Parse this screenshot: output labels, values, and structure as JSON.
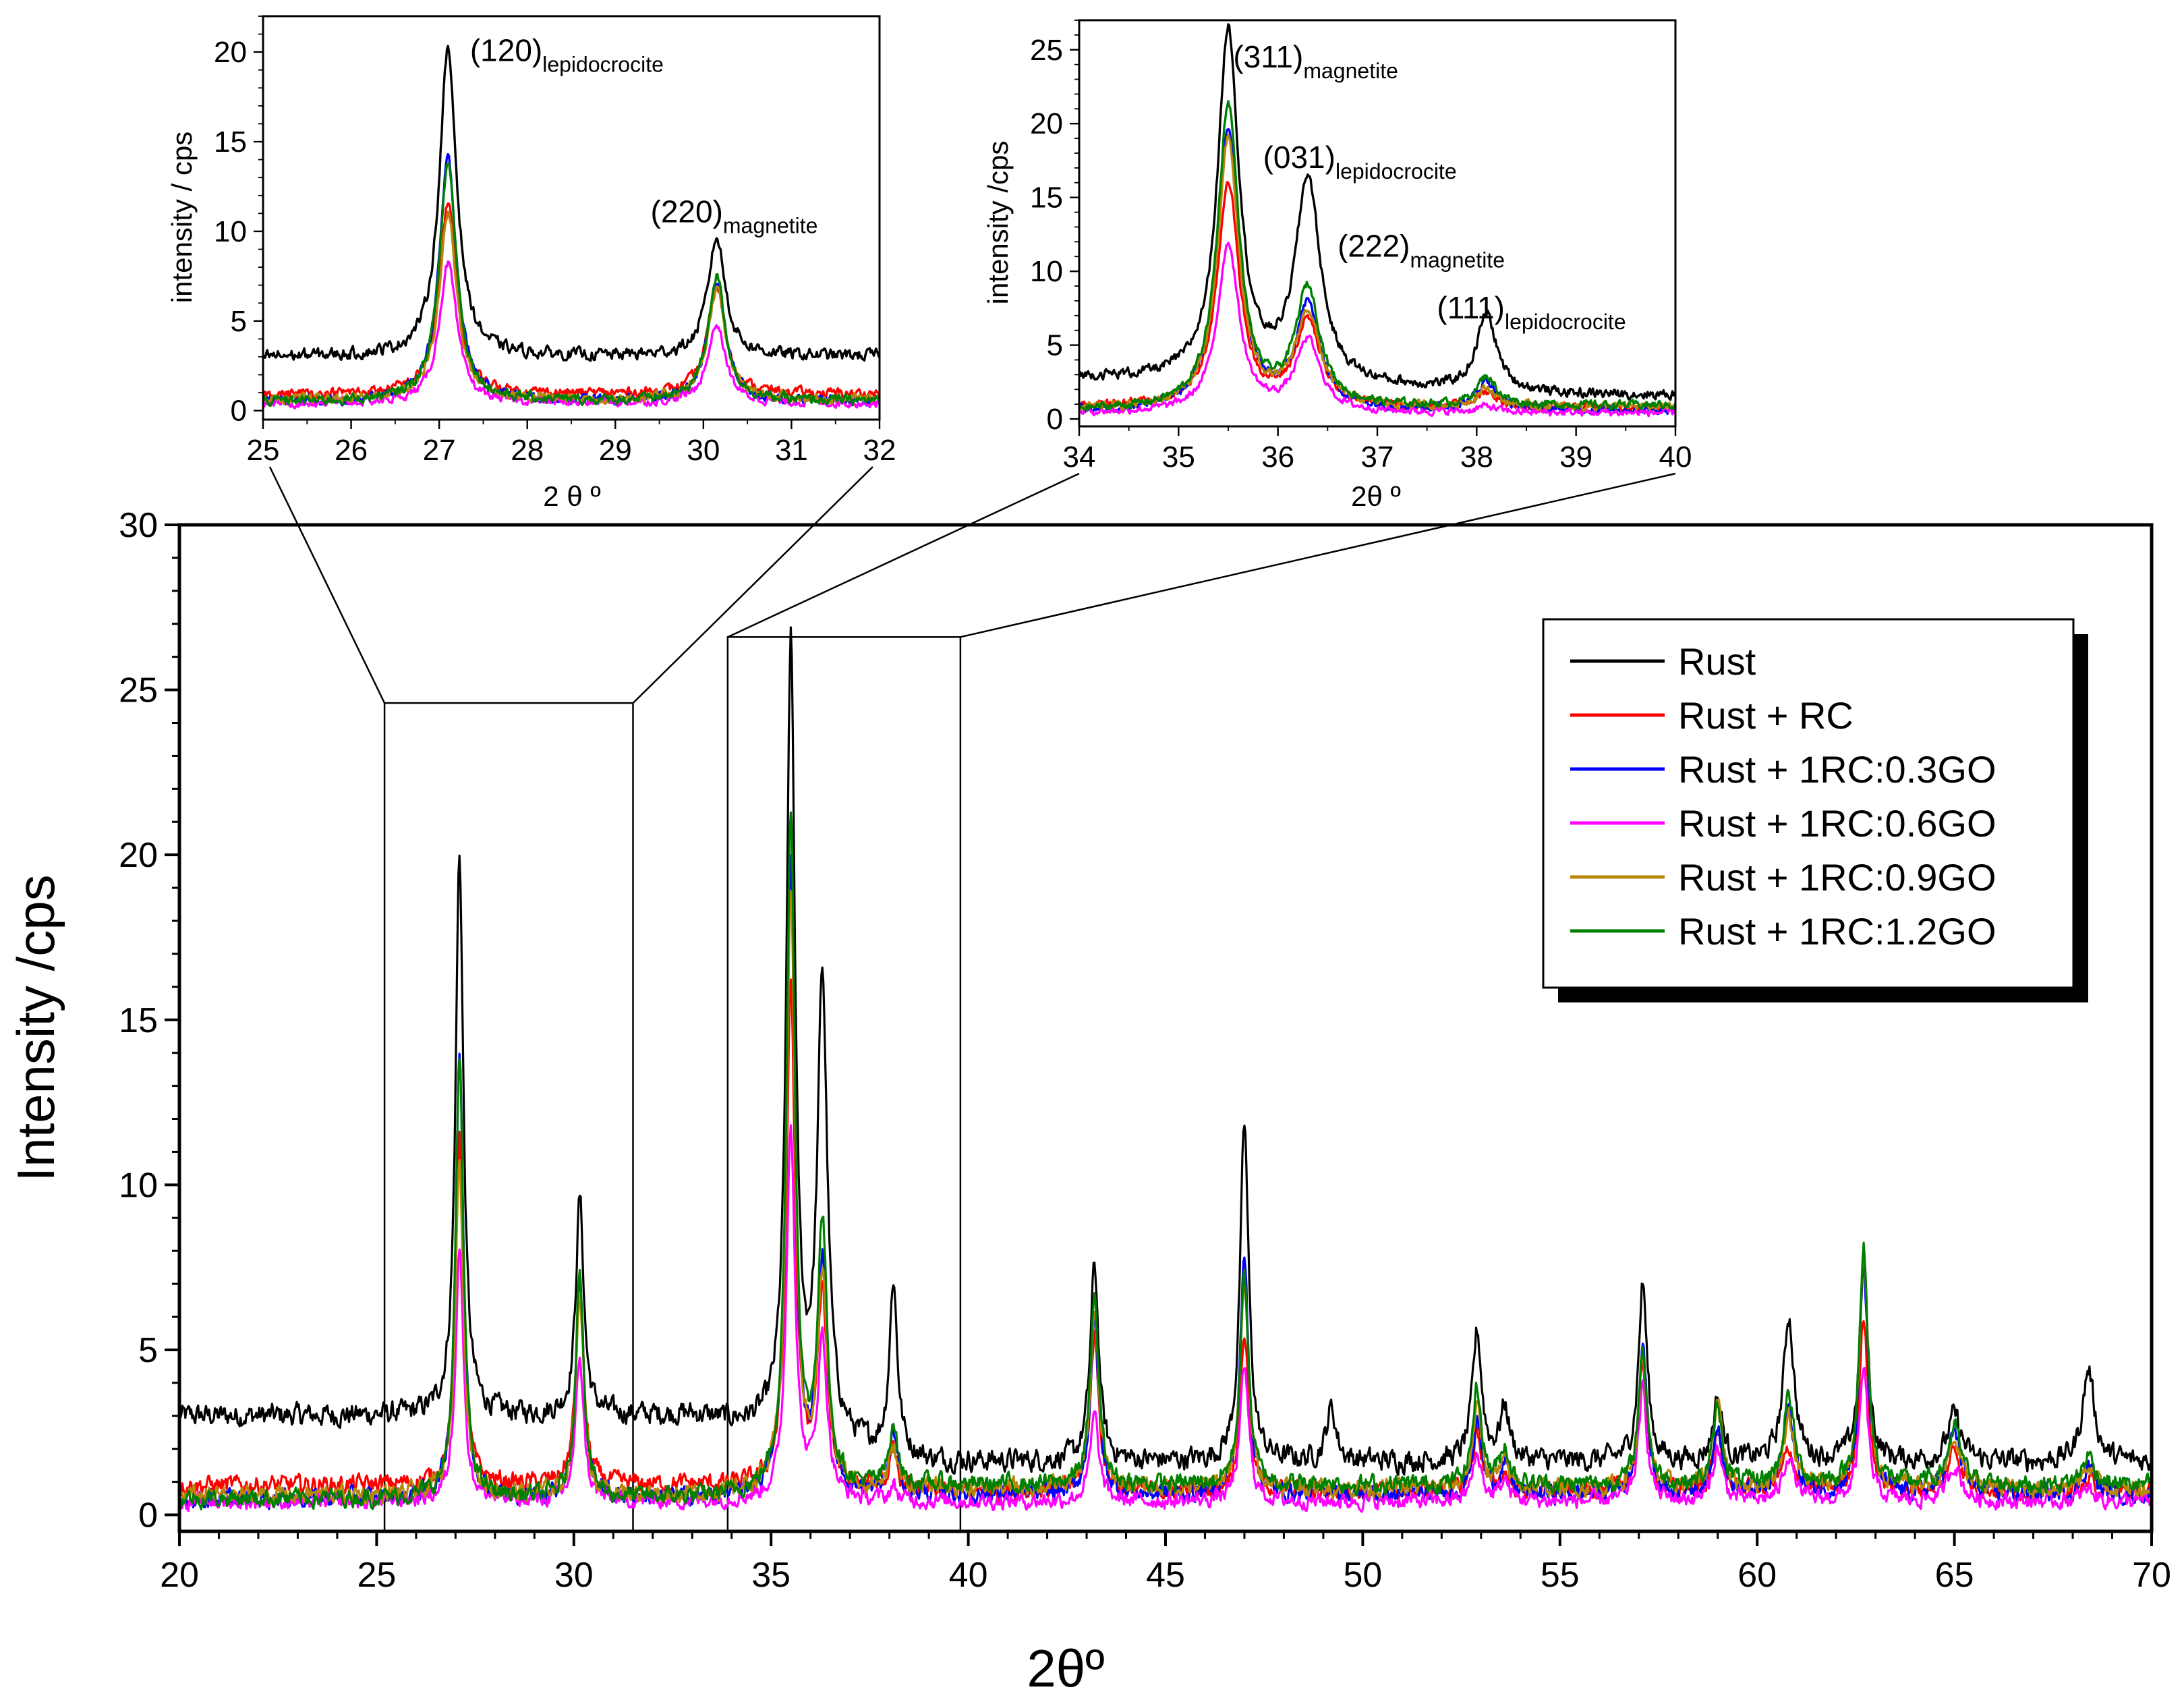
{
  "chart_data": {
    "type": "line",
    "main": {
      "xlabel": "2θº",
      "ylabel": "Intensity /cps",
      "xlim": [
        20,
        70
      ],
      "ylim": [
        -0.5,
        30
      ],
      "xticks": [
        20,
        25,
        30,
        35,
        40,
        45,
        50,
        55,
        60,
        65,
        70
      ],
      "yticks": [
        0,
        5,
        10,
        15,
        20,
        25,
        30
      ],
      "zoom_boxes": [
        {
          "x": [
            25.2,
            31.5
          ],
          "y": [
            -0.5,
            24.6
          ]
        },
        {
          "x": [
            33.9,
            39.8
          ],
          "y": [
            -0.5,
            26.6
          ]
        }
      ]
    },
    "insets": [
      {
        "xlabel": "2 θ º",
        "ylabel": "intensity / cps",
        "xlim": [
          25,
          32
        ],
        "ylim": [
          -0.5,
          22
        ],
        "xticks": [
          25,
          26,
          27,
          28,
          29,
          30,
          31,
          32
        ],
        "yticks": [
          0,
          5,
          10,
          15,
          20
        ],
        "annotations": [
          {
            "main": "(120)",
            "sub": "lepidocrocite",
            "x": 27.35,
            "y": 19.5
          },
          {
            "main": "(220)",
            "sub": "magnetite",
            "x": 29.4,
            "y": 10.5
          }
        ]
      },
      {
        "xlabel": "2θ º",
        "ylabel": "intensity /cps",
        "xlim": [
          34,
          40
        ],
        "ylim": [
          -0.5,
          27
        ],
        "xticks": [
          34,
          35,
          36,
          37,
          38,
          39,
          40
        ],
        "yticks": [
          0,
          5,
          10,
          15,
          20,
          25
        ],
        "annotations": [
          {
            "main": "(311)",
            "sub": "magnetite",
            "x": 35.55,
            "y": 23.8
          },
          {
            "main": "(031)",
            "sub": "lepidocrocite",
            "x": 35.85,
            "y": 17.0
          },
          {
            "main": "(222)",
            "sub": "magnetite",
            "x": 36.6,
            "y": 11.0
          },
          {
            "main": "(111)",
            "sub": "lepidocrocite",
            "x": 37.6,
            "y": 6.8
          }
        ]
      }
    ],
    "peaks_2theta": [
      27.1,
      30.15,
      35.5,
      36.3,
      38.1,
      43.2,
      47.0,
      49.2,
      52.9,
      53.6,
      57.1,
      59.0,
      60.8,
      62.7,
      65.0,
      68.4
    ],
    "series": [
      {
        "name": "Rust",
        "color": "#000000",
        "baseline_low": 3.0,
        "baseline_high": 1.6,
        "noise": 0.55,
        "peaks": [
          20.0,
          9.6,
          26.2,
          16.0,
          7.0,
          7.5,
          11.8,
          3.2,
          5.5,
          3.2,
          7.0,
          3.5,
          6.0,
          7.5,
          3.0,
          4.4
        ]
      },
      {
        "name": "Rust + RC",
        "color": "#ff0000",
        "baseline_low": 0.9,
        "baseline_high": 0.7,
        "noise": 0.45,
        "peaks": [
          11.5,
          7.0,
          16.0,
          6.5,
          1.8,
          5.5,
          5.5,
          0.5,
          2.5,
          1.2,
          4.5,
          2.5,
          2.0,
          6.0,
          2.0,
          1.0
        ]
      },
      {
        "name": "Rust + 1RC:0.3GO",
        "color": "#0000ff",
        "baseline_low": 0.5,
        "baseline_high": 0.6,
        "noise": 0.45,
        "peaks": [
          14.0,
          7.2,
          19.5,
          7.5,
          2.5,
          5.8,
          7.8,
          0.8,
          2.8,
          1.5,
          5.2,
          2.8,
          3.2,
          7.5,
          2.5,
          1.5
        ]
      },
      {
        "name": "Rust + 1RC:0.6GO",
        "color": "#ff00ff",
        "baseline_low": 0.4,
        "baseline_high": 0.4,
        "noise": 0.4,
        "peaks": [
          8.2,
          4.8,
          11.8,
          5.2,
          0.8,
          3.0,
          4.5,
          0.4,
          1.8,
          1.0,
          3.8,
          2.0,
          1.8,
          4.4,
          1.5,
          0.8
        ]
      },
      {
        "name": "Rust + 1RC:0.9GO",
        "color": "#b8860b",
        "baseline_low": 0.6,
        "baseline_high": 0.8,
        "noise": 0.45,
        "peaks": [
          11.0,
          6.8,
          18.8,
          7.0,
          2.0,
          6.0,
          7.0,
          0.8,
          3.2,
          1.5,
          4.8,
          3.5,
          3.0,
          7.8,
          2.2,
          1.5
        ]
      },
      {
        "name": "Rust + 1RC:1.2GO",
        "color": "#008000",
        "baseline_low": 0.5,
        "baseline_high": 0.9,
        "noise": 0.45,
        "peaks": [
          13.8,
          7.5,
          21.2,
          8.6,
          2.8,
          6.5,
          7.2,
          1.0,
          3.8,
          2.0,
          5.0,
          3.2,
          3.6,
          8.0,
          2.6,
          1.8
        ]
      }
    ]
  }
}
